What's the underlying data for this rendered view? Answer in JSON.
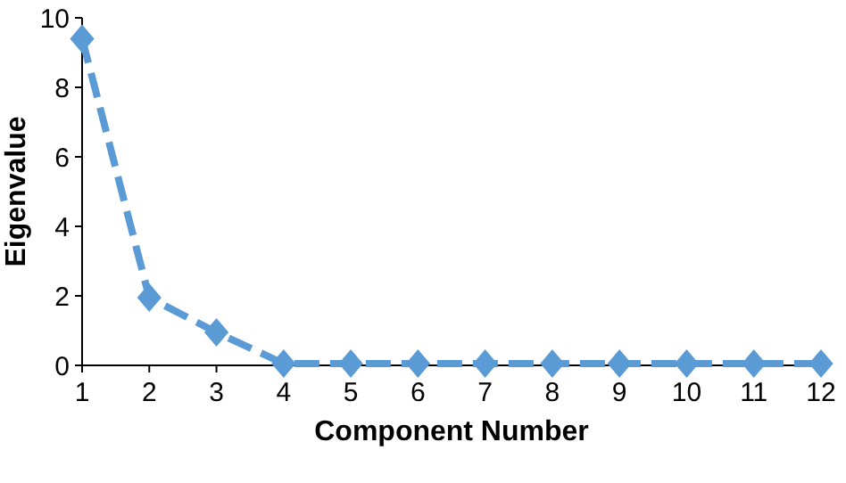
{
  "chart_data": {
    "type": "line",
    "xlabel": "Component Number",
    "ylabel": "Eigenvalue",
    "x": [
      1,
      2,
      3,
      4,
      5,
      6,
      7,
      8,
      9,
      10,
      11,
      12
    ],
    "series": [
      {
        "color": "#5b9bd5",
        "values": [
          9.4,
          1.95,
          0.95,
          0.05,
          0.05,
          0.05,
          0.05,
          0.05,
          0.05,
          0.05,
          0.05,
          0.05
        ]
      }
    ],
    "xlim": [
      1,
      12
    ],
    "xticks": [
      1,
      2,
      3,
      4,
      5,
      6,
      7,
      8,
      9,
      10,
      11,
      12
    ],
    "ylim": [
      0,
      10
    ],
    "yticks": [
      0,
      2,
      4,
      6,
      8,
      10
    ],
    "grid": false,
    "marker": "diamond",
    "line_style": "dashed"
  }
}
